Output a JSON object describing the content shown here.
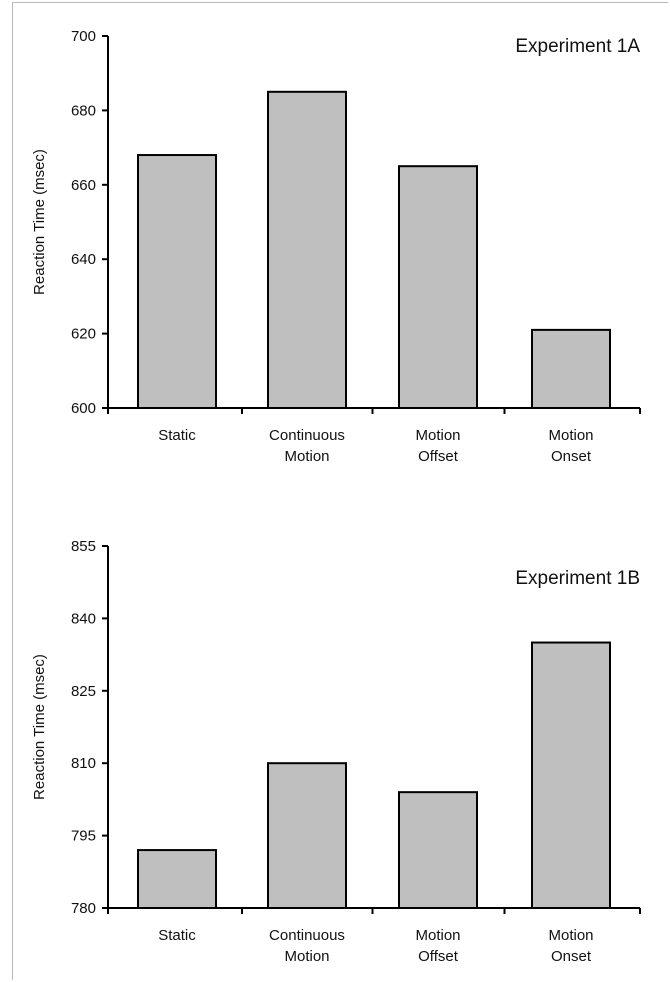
{
  "colors": {
    "bar_fill": "#bfbfbf",
    "bar_stroke": "#000000",
    "axis": "#000000"
  },
  "chart_data": [
    {
      "type": "bar",
      "title": "Experiment 1A",
      "ylabel": "Reaction Time (msec)",
      "xlabel": "",
      "categories": [
        [
          "Static"
        ],
        [
          "Continuous",
          "Motion"
        ],
        [
          "Motion",
          "Offset"
        ],
        [
          "Motion",
          "Onset"
        ]
      ],
      "values": [
        668,
        685,
        665,
        621
      ],
      "ylim": [
        600,
        700
      ],
      "yticks": [
        "700",
        "680",
        "660",
        "640",
        "620",
        "600"
      ],
      "legend": "none",
      "grid": false
    },
    {
      "type": "bar",
      "title": "Experiment 1B",
      "ylabel": "Reaction Time (msec)",
      "xlabel": "",
      "categories": [
        [
          "Static"
        ],
        [
          "Continuous",
          "Motion"
        ],
        [
          "Motion",
          "Offset"
        ],
        [
          "Motion",
          "Onset"
        ]
      ],
      "values": [
        792,
        810,
        804,
        835
      ],
      "ylim": [
        780,
        855
      ],
      "yticks": [
        "855",
        "840",
        "825",
        "810",
        "795",
        "780"
      ],
      "legend": "none",
      "grid": false
    }
  ]
}
